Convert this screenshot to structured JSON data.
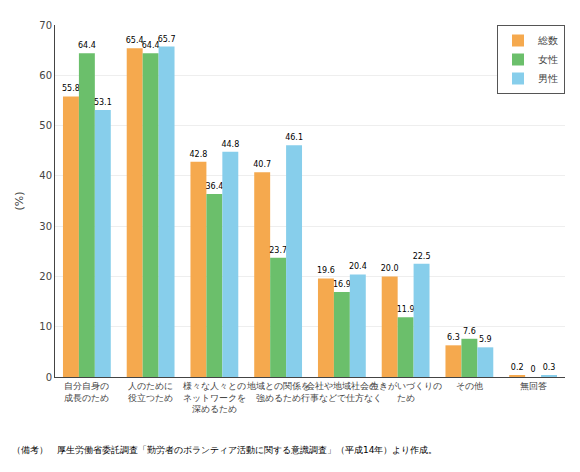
{
  "chart_data": {
    "type": "bar",
    "categories": [
      "自分自身の\n成長のため",
      "人のために\n役立つため",
      "様々な人々との\nネットワークを\n深めるため",
      "地域との関係を\n強めるため",
      "会社や地域社会の\n行事などで仕方なく",
      "生きがいづくりの\nため",
      "その他",
      "無回答"
    ],
    "series": [
      {
        "name": "総数",
        "color": "#F5A94E",
        "values": [
          55.8,
          65.4,
          42.8,
          40.7,
          19.6,
          20.0,
          6.3,
          0.2
        ],
        "value_labels": [
          "55.8",
          "65.4",
          "42.8",
          "40.7",
          "19.6",
          "20.0",
          "6.3",
          "0.2"
        ]
      },
      {
        "name": "女性",
        "color": "#6BBF6B",
        "values": [
          64.4,
          64.4,
          36.4,
          23.7,
          16.9,
          11.9,
          7.6,
          0.0
        ],
        "value_labels": [
          "64.4",
          "64.4",
          "36.4",
          "23.7",
          "16.9",
          "11.9",
          "7.6",
          "0"
        ]
      },
      {
        "name": "男性",
        "color": "#87CEEB",
        "values": [
          53.1,
          65.7,
          44.8,
          46.1,
          20.4,
          22.5,
          5.9,
          0.3
        ],
        "value_labels": [
          "53.1",
          "65.7",
          "44.8",
          "46.1",
          "20.4",
          "22.5",
          "5.9",
          "0.3"
        ]
      }
    ],
    "ylabel": "(%)",
    "ylim": [
      0,
      70
    ],
    "yticks": [
      0,
      10,
      20,
      30,
      40,
      50,
      60,
      70
    ],
    "grid": true,
    "legend": "upper right",
    "data_labels": true,
    "annotations": [
      "（備考）　厚生労働省委託調査「勤労者のボランティア活動に関する意識調査」（平成14年）より作成。"
    ]
  }
}
